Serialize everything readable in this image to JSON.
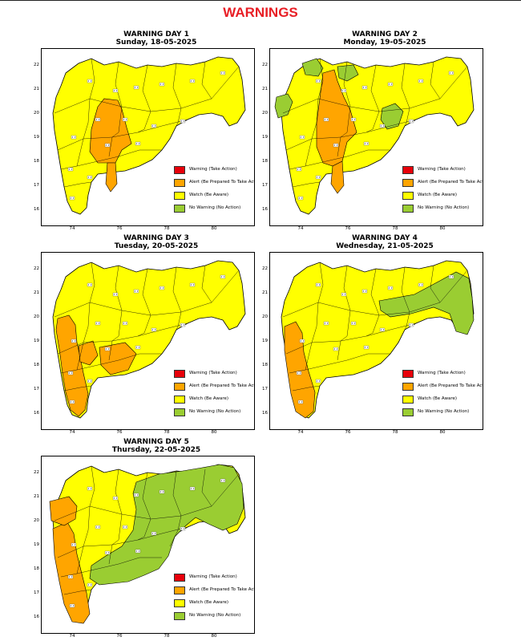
{
  "title": "WARNINGS",
  "colors": {
    "warning": "#e8000b",
    "alert": "#ffa500",
    "watch": "#ffff00",
    "no_warning": "#9acd32"
  },
  "y_ticks": [
    "22",
    "21",
    "20",
    "19",
    "18",
    "17",
    "16"
  ],
  "x_ticks": [
    "74",
    "76",
    "78",
    "80"
  ],
  "legend": [
    {
      "key": "warning",
      "label": "Warning (Take Action)"
    },
    {
      "key": "alert",
      "label": "Alert (Be Prepared To Take Action)"
    },
    {
      "key": "watch",
      "label": "Watch (Be Aware)"
    },
    {
      "key": "no_warning",
      "label": "No Warning (No Action)"
    }
  ],
  "panels": [
    {
      "heading": "WARNING DAY 1",
      "date": "Sunday, 18-05-2025",
      "base": "watch",
      "regions": [
        {
          "level": "alert",
          "pts": [
            [
              70,
              72
            ],
            [
              78,
              62
            ],
            [
              95,
              64
            ],
            [
              100,
              75
            ],
            [
              106,
              98
            ],
            [
              112,
              118
            ],
            [
              100,
              126
            ],
            [
              92,
              142
            ],
            [
              70,
              142
            ],
            [
              60,
              128
            ],
            [
              62,
              100
            ]
          ]
        },
        {
          "level": "alert",
          "pts": [
            [
              82,
              142
            ],
            [
              92,
              142
            ],
            [
              94,
              168
            ],
            [
              86,
              178
            ],
            [
              80,
              168
            ]
          ]
        }
      ]
    },
    {
      "heading": "WARNING DAY 2",
      "date": "Monday, 19-05-2025",
      "base": "watch",
      "regions": [
        {
          "level": "alert",
          "pts": [
            [
              66,
              30
            ],
            [
              80,
              26
            ],
            [
              84,
              40
            ],
            [
              92,
              60
            ],
            [
              100,
              76
            ],
            [
              108,
              104
            ],
            [
              96,
              116
            ],
            [
              90,
              140
            ],
            [
              78,
              146
            ],
            [
              66,
              142
            ],
            [
              58,
              122
            ],
            [
              58,
              92
            ],
            [
              62,
              62
            ]
          ]
        },
        {
          "level": "alert",
          "pts": [
            [
              78,
              146
            ],
            [
              90,
              140
            ],
            [
              92,
              170
            ],
            [
              84,
              180
            ],
            [
              76,
              168
            ]
          ]
        },
        {
          "level": "no_warning",
          "pts": [
            [
              40,
              18
            ],
            [
              58,
              12
            ],
            [
              66,
              24
            ],
            [
              60,
              34
            ],
            [
              44,
              32
            ]
          ]
        },
        {
          "level": "no_warning",
          "pts": [
            [
              84,
              22
            ],
            [
              104,
              20
            ],
            [
              110,
              32
            ],
            [
              96,
              40
            ],
            [
              86,
              36
            ]
          ]
        },
        {
          "level": "no_warning",
          "pts": [
            [
              8,
              60
            ],
            [
              22,
              56
            ],
            [
              28,
              66
            ],
            [
              22,
              82
            ],
            [
              10,
              86
            ],
            [
              6,
              72
            ]
          ]
        },
        {
          "level": "no_warning",
          "pts": [
            [
              140,
              74
            ],
            [
              156,
              68
            ],
            [
              166,
              78
            ],
            [
              160,
              96
            ],
            [
              146,
              100
            ],
            [
              138,
              88
            ]
          ]
        }
      ]
    },
    {
      "heading": "WARNING DAY 3",
      "date": "Tuesday, 20-05-2025",
      "base": "watch",
      "regions": [
        {
          "level": "alert",
          "pts": [
            [
              20,
              82
            ],
            [
              34,
              78
            ],
            [
              42,
              90
            ],
            [
              44,
              112
            ],
            [
              48,
              130
            ],
            [
              52,
              150
            ],
            [
              58,
              176
            ],
            [
              54,
              196
            ],
            [
              46,
              204
            ],
            [
              36,
              196
            ],
            [
              30,
              174
            ],
            [
              26,
              150
            ],
            [
              22,
              120
            ],
            [
              18,
              96
            ]
          ]
        },
        {
          "level": "alert",
          "pts": [
            [
              46,
              116
            ],
            [
              64,
              110
            ],
            [
              70,
              128
            ],
            [
              60,
              140
            ],
            [
              48,
              136
            ]
          ]
        },
        {
          "level": "alert",
          "pts": [
            [
              72,
              118
            ],
            [
              104,
              112
            ],
            [
              118,
              126
            ],
            [
              108,
              146
            ],
            [
              86,
              152
            ],
            [
              74,
              140
            ]
          ]
        }
      ]
    },
    {
      "heading": "WARNING DAY 4",
      "date": "Wednesday, 21-05-2025",
      "base": "watch",
      "regions": [
        {
          "level": "alert",
          "pts": [
            [
              18,
              92
            ],
            [
              32,
              86
            ],
            [
              40,
              100
            ],
            [
              42,
              124
            ],
            [
              48,
              148
            ],
            [
              56,
              174
            ],
            [
              54,
              198
            ],
            [
              44,
              206
            ],
            [
              32,
              198
            ],
            [
              26,
              176
            ],
            [
              22,
              150
            ],
            [
              18,
              122
            ]
          ]
        },
        {
          "level": "no_warning",
          "pts": [
            [
              136,
              60
            ],
            [
              180,
              52
            ],
            [
              210,
              36
            ],
            [
              232,
              24
            ],
            [
              248,
              32
            ],
            [
              252,
              56
            ],
            [
              254,
              84
            ],
            [
              246,
              102
            ],
            [
              232,
              98
            ],
            [
              224,
              76
            ],
            [
              204,
              68
            ],
            [
              176,
              76
            ],
            [
              150,
              80
            ],
            [
              138,
              72
            ]
          ]
        }
      ]
    },
    {
      "heading": "WARNING DAY 5",
      "date": "Thursday, 22-05-2025",
      "base": "watch",
      "regions": [
        {
          "level": "alert",
          "pts": [
            [
              14,
              90
            ],
            [
              32,
              82
            ],
            [
              40,
              96
            ],
            [
              44,
              122
            ],
            [
              50,
              146
            ],
            [
              56,
              170
            ],
            [
              60,
              196
            ],
            [
              52,
              208
            ],
            [
              38,
              206
            ],
            [
              28,
              184
            ],
            [
              22,
              156
            ],
            [
              16,
              124
            ]
          ]
        },
        {
          "level": "alert",
          "pts": [
            [
              10,
              56
            ],
            [
              34,
              50
            ],
            [
              44,
              62
            ],
            [
              42,
              78
            ],
            [
              28,
              86
            ],
            [
              12,
              80
            ]
          ]
        },
        {
          "level": "no_warning",
          "pts": [
            [
              118,
              32
            ],
            [
              146,
              22
            ],
            [
              176,
              18
            ],
            [
              200,
              14
            ],
            [
              222,
              10
            ],
            [
              240,
              14
            ],
            [
              250,
              34
            ],
            [
              252,
              64
            ],
            [
              244,
              84
            ],
            [
              226,
              92
            ],
            [
              208,
              84
            ],
            [
              192,
              76
            ],
            [
              180,
              86
            ],
            [
              166,
              100
            ],
            [
              158,
              124
            ],
            [
              146,
              140
            ],
            [
              128,
              148
            ],
            [
              108,
              156
            ],
            [
              90,
              158
            ],
            [
              72,
              160
            ],
            [
              60,
              152
            ],
            [
              62,
              136
            ],
            [
              80,
              124
            ],
            [
              100,
              112
            ],
            [
              114,
              92
            ],
            [
              118,
              66
            ],
            [
              114,
              46
            ]
          ]
        }
      ]
    }
  ]
}
